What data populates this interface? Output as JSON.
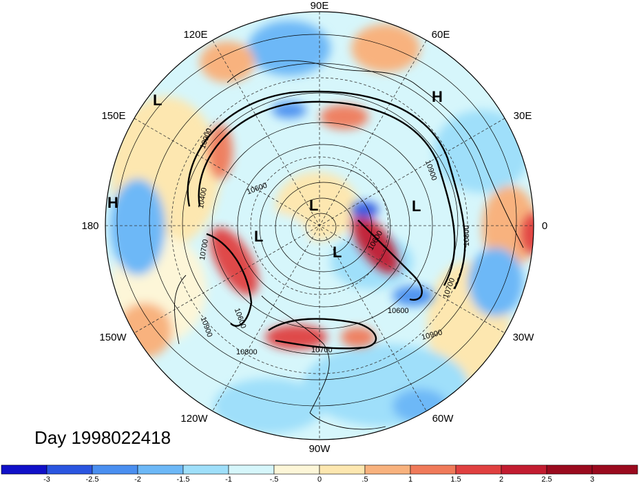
{
  "title": "Day 1998022418",
  "longitude_labels": {
    "top": "90E",
    "upper_left": "120E",
    "upper_right": "60E",
    "left_upper": "150E",
    "right_upper": "30E",
    "left": "180",
    "right": "0",
    "left_lower": "150W",
    "right_lower": "30W",
    "lower_left": "120W",
    "lower_right": "60W",
    "bottom": "90W"
  },
  "pressure_systems": [
    {
      "type": "low",
      "label": "L"
    },
    {
      "type": "high",
      "label": "H"
    },
    {
      "type": "high",
      "label": "H"
    },
    {
      "type": "low",
      "label": "L"
    },
    {
      "type": "low",
      "label": "L"
    },
    {
      "type": "low",
      "label": "L"
    },
    {
      "type": "low",
      "label": "L"
    }
  ],
  "contour_labels": [
    "10900",
    "10400",
    "10900",
    "10700",
    "10800",
    "10600",
    "10600",
    "10600",
    "10700",
    "10900",
    "10600",
    "10700",
    "10900",
    "10800"
  ],
  "colorbar": {
    "ticks": [
      "-3",
      "-2.5",
      "-2",
      "-1.5",
      "-1",
      "-.5",
      "0",
      ".5",
      "1",
      "1.5",
      "2",
      "2.5",
      "3"
    ],
    "colors": [
      "#1010c8",
      "#2a55e0",
      "#4a8ff0",
      "#6db8f7",
      "#9fdffa",
      "#d6f6fb",
      "#fdf6d8",
      "#fde7b0",
      "#f8b27e",
      "#f07a5a",
      "#e04040",
      "#c21c30",
      "#9a0a1e"
    ]
  }
}
